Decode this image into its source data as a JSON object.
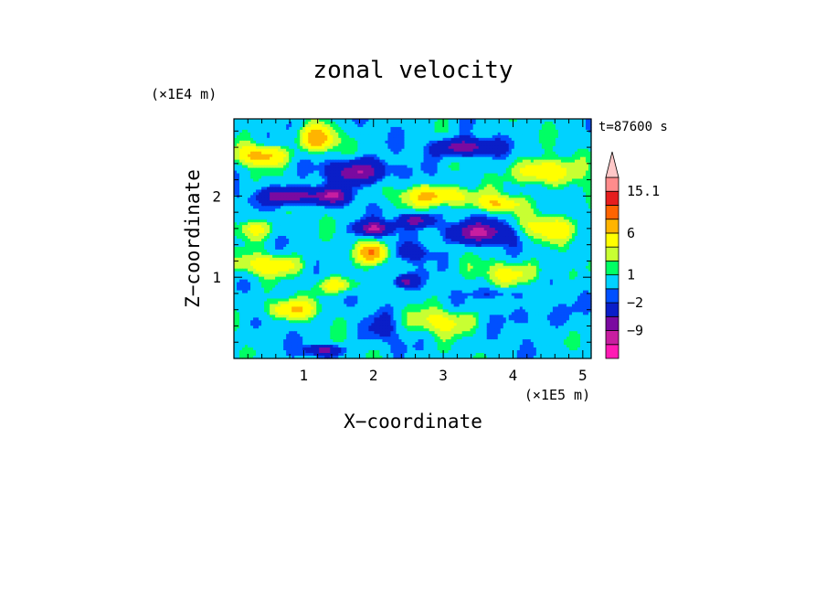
{
  "chart_data": {
    "type": "heatmap",
    "title": "zonal velocity",
    "xlabel": "X−coordinate",
    "ylabel": "Z−coordinate",
    "x_unit": "(×1E5 m)",
    "y_unit": "(×1E4 m)",
    "time_label": "t=87600 s",
    "xlim": [
      0,
      5.12
    ],
    "ylim": [
      0,
      2.95
    ],
    "x_ticks": [
      {
        "value": 1,
        "label": "1"
      },
      {
        "value": 2,
        "label": "2"
      },
      {
        "value": 3,
        "label": "3"
      },
      {
        "value": 4,
        "label": "4"
      },
      {
        "value": 5,
        "label": "5"
      }
    ],
    "y_ticks": [
      {
        "value": 1,
        "label": "1"
      },
      {
        "value": 2,
        "label": "2"
      }
    ],
    "colorbar": {
      "levels": [
        -15.1,
        -12.1,
        -9,
        -6,
        -2,
        -1,
        1,
        2,
        3.5,
        6,
        9,
        12.1,
        15.1
      ],
      "colors": [
        "#ff1ab4",
        "#c81ea0",
        "#7a0aa0",
        "#0a1ec8",
        "#0050ff",
        "#00d2ff",
        "#00ff64",
        "#c8ff32",
        "#ffff00",
        "#ffb400",
        "#ff6400",
        "#e61e1e",
        "#ff8c8c",
        "#ffc8c8"
      ],
      "labels": [
        {
          "level_index": 12,
          "label": "15.1"
        },
        {
          "level_index": 9,
          "label": "6"
        },
        {
          "level_index": 6,
          "label": "1"
        },
        {
          "level_index": 4,
          "label": "−2"
        },
        {
          "level_index": 2,
          "label": "−9"
        }
      ],
      "extend": "max"
    },
    "features": [
      {
        "x": 0.4,
        "z": 2.5,
        "value": 7,
        "sx": 0.35,
        "sz": 0.12
      },
      {
        "x": 1.2,
        "z": 2.7,
        "value": 8,
        "sx": 0.25,
        "sz": 0.15
      },
      {
        "x": 0.8,
        "z": 2.0,
        "value": -9,
        "sx": 0.4,
        "sz": 0.1
      },
      {
        "x": 1.4,
        "z": 2.0,
        "value": -8,
        "sx": 0.25,
        "sz": 0.1
      },
      {
        "x": 1.8,
        "z": 2.3,
        "value": -9,
        "sx": 0.4,
        "sz": 0.14
      },
      {
        "x": 3.3,
        "z": 2.6,
        "value": -9,
        "sx": 0.4,
        "sz": 0.1
      },
      {
        "x": 2.0,
        "z": 1.6,
        "value": -9,
        "sx": 0.25,
        "sz": 0.08
      },
      {
        "x": 2.6,
        "z": 1.7,
        "value": -8,
        "sx": 0.25,
        "sz": 0.08
      },
      {
        "x": 3.5,
        "z": 1.55,
        "value": -9,
        "sx": 0.45,
        "sz": 0.13
      },
      {
        "x": 2.45,
        "z": 0.95,
        "value": -8,
        "sx": 0.15,
        "sz": 0.08
      },
      {
        "x": 2.95,
        "z": 2.0,
        "value": 7,
        "sx": 0.5,
        "sz": 0.12
      },
      {
        "x": 4.4,
        "z": 2.3,
        "value": 7,
        "sx": 0.35,
        "sz": 0.15
      },
      {
        "x": 3.8,
        "z": 1.9,
        "value": 6,
        "sx": 0.3,
        "sz": 0.1
      },
      {
        "x": 2.0,
        "z": 1.3,
        "value": 9,
        "sx": 0.2,
        "sz": 0.12
      },
      {
        "x": 0.5,
        "z": 1.15,
        "value": 5,
        "sx": 0.5,
        "sz": 0.12
      },
      {
        "x": 2.6,
        "z": 1.3,
        "value": -3,
        "sx": 0.3,
        "sz": 0.1
      },
      {
        "x": 4.5,
        "z": 1.6,
        "value": 5,
        "sx": 0.4,
        "sz": 0.15
      },
      {
        "x": 0.8,
        "z": 0.6,
        "value": 6,
        "sx": 0.35,
        "sz": 0.12
      },
      {
        "x": 1.5,
        "z": 0.9,
        "value": 5,
        "sx": 0.3,
        "sz": 0.1
      },
      {
        "x": 4.3,
        "z": 0.5,
        "value": -2,
        "sx": 0.45,
        "sz": 0.15
      },
      {
        "x": 4.0,
        "z": 1.05,
        "value": 4,
        "sx": 0.45,
        "sz": 0.15
      },
      {
        "x": 1.3,
        "z": 0.1,
        "value": -7,
        "sx": 0.25,
        "sz": 0.06
      },
      {
        "x": 3.8,
        "z": 0.8,
        "value": -3,
        "sx": 0.3,
        "sz": 0.08
      },
      {
        "x": 2.1,
        "z": 0.35,
        "value": -2,
        "sx": 0.3,
        "sz": 0.2
      },
      {
        "x": 4.9,
        "z": 2.1,
        "value": 1.5,
        "sx": 0.25,
        "sz": 0.3
      },
      {
        "x": 3.0,
        "z": 0.45,
        "value": 4,
        "sx": 0.5,
        "sz": 0.15
      },
      {
        "x": 0.3,
        "z": 1.6,
        "value": 4,
        "sx": 0.3,
        "sz": 0.12
      }
    ]
  }
}
